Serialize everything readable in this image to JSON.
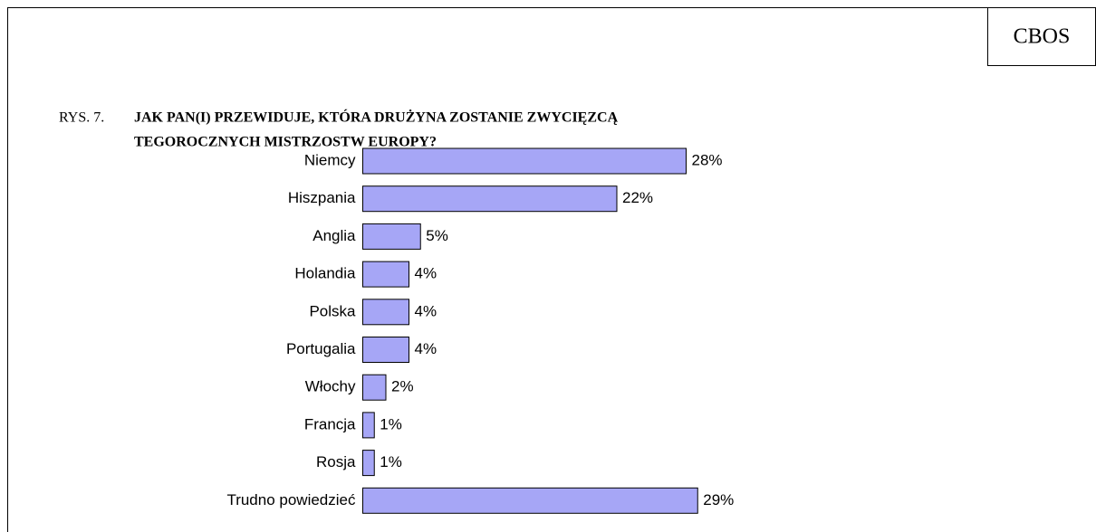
{
  "source": "CBOS",
  "chart_data": {
    "type": "bar",
    "orientation": "horizontal",
    "figure_label": "RYS. 7.",
    "title_lines": [
      "JAK PAN(I) PRZEWIDUJE, KTÓRA DRUŻYNA ZOSTANIE ZWYCIĘZCĄ",
      "TEGOROCZNYCH MISTRZOSTW EUROPY?"
    ],
    "categories": [
      "Niemcy",
      "Hiszpania",
      "Anglia",
      "Holandia",
      "Polska",
      "Portugalia",
      "Włochy",
      "Francja",
      "Rosja",
      "Trudno powiedzieć"
    ],
    "values": [
      28,
      22,
      5,
      4,
      4,
      4,
      2,
      1,
      1,
      29
    ],
    "value_labels": [
      "28%",
      "22%",
      "5%",
      "4%",
      "4%",
      "4%",
      "2%",
      "1%",
      "1%",
      "29%"
    ],
    "color": "#a6a6f6"
  }
}
